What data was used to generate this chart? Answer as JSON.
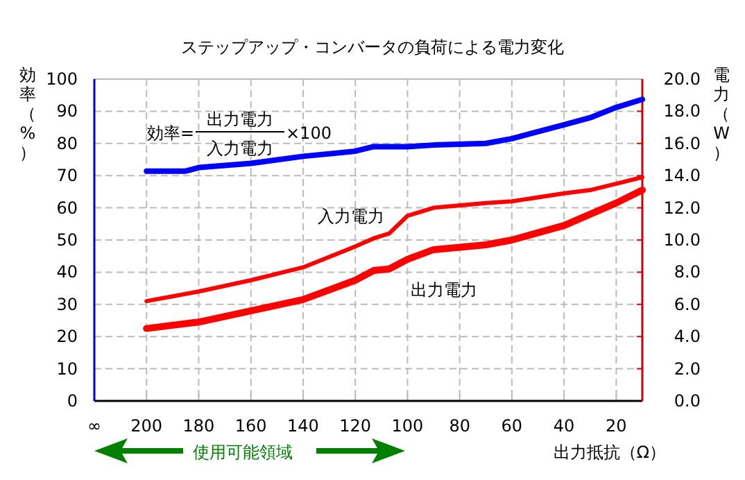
{
  "chart_data": {
    "type": "line",
    "title": "ステップアップ・コンバータの負荷による電力変化",
    "xlabel": "出力抵抗（Ω）",
    "ylabel": "効率（%）",
    "y2label": "電力（W）",
    "xlim": [
      220,
      10
    ],
    "xticks": [
      {
        "value": 220,
        "label": "∞"
      },
      200,
      180,
      160,
      140,
      120,
      100,
      80,
      60,
      40,
      20
    ],
    "ylim": [
      0,
      100
    ],
    "yticks": [
      0,
      10,
      20,
      30,
      40,
      50,
      60,
      70,
      80,
      90,
      100
    ],
    "y2lim": [
      0,
      20
    ],
    "y2ticks": [
      {
        "value": 0,
        "label": "0.0"
      },
      {
        "value": 2,
        "label": "2.0"
      },
      {
        "value": 4,
        "label": "4.0"
      },
      {
        "value": 6,
        "label": "6.0"
      },
      {
        "value": 8,
        "label": "8.0"
      },
      {
        "value": 10,
        "label": "10.0"
      },
      {
        "value": 12,
        "label": "12.0"
      },
      {
        "value": 14,
        "label": "14.0"
      },
      {
        "value": 16,
        "label": "16.0"
      },
      {
        "value": 18,
        "label": "18.0"
      },
      {
        "value": 20,
        "label": "20.0"
      }
    ],
    "grid": true,
    "annotations": [
      "効率=",
      "出力電力",
      "入力電力",
      "×100",
      "使用可能領域"
    ],
    "series": [
      {
        "color": "#0000ff",
        "x": [
          200,
          185,
          180,
          160,
          140,
          120,
          113,
          100,
          90,
          70,
          60,
          40,
          30,
          20,
          10
        ],
        "values": [
          71.4,
          71.4,
          72.5,
          73.8,
          76,
          77.6,
          79,
          79,
          79.5,
          80,
          81.5,
          85.8,
          88,
          91.2,
          93.7
        ]
      },
      {
        "name": "入力電力",
        "axis": "y2",
        "color": "#ff0000",
        "x": [
          200,
          180,
          160,
          140,
          120,
          113,
          107,
          100,
          90,
          70,
          60,
          40,
          30,
          20,
          10
        ],
        "values": [
          6.2,
          6.8,
          7.5,
          8.3,
          9.6,
          10.1,
          10.4,
          11.5,
          12.0,
          12.3,
          12.4,
          12.9,
          13.1,
          13.5,
          13.9
        ]
      },
      {
        "name": "出力電力",
        "axis": "y2",
        "color": "#ff0000",
        "x": [
          200,
          180,
          160,
          140,
          120,
          113,
          107,
          100,
          90,
          70,
          60,
          40,
          30,
          20,
          10
        ],
        "values": [
          4.5,
          4.9,
          5.6,
          6.3,
          7.5,
          8.1,
          8.2,
          8.8,
          9.4,
          9.7,
          10.0,
          10.9,
          11.6,
          12.3,
          13.1
        ]
      }
    ]
  }
}
